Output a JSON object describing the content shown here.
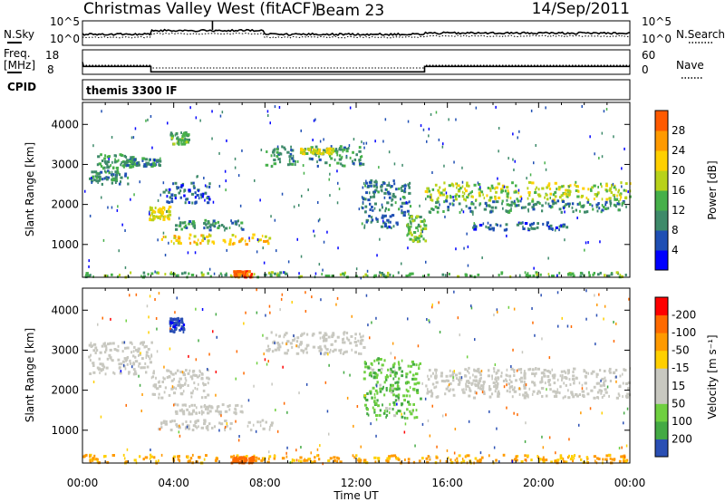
{
  "header": {
    "station": "Christmas Valley West (fitACF)",
    "beam": "Beam 23",
    "date": "14/Sep/2011"
  },
  "summary": {
    "nsky_label": "N.Sky",
    "nsky_ticks": [
      "10^5",
      "10^0"
    ],
    "nsearch_label": "N.Search",
    "nsearch_ticks": [
      "10^5",
      "10^0"
    ],
    "freq_label": [
      "Freq.",
      "[MHz]"
    ],
    "freq_ticks": [
      "18",
      "8"
    ],
    "nave_label": "Nave",
    "nave_ticks": [
      "60",
      "0"
    ],
    "cpid_label": "CPID",
    "cpid_value": "themis 3300 IF"
  },
  "colors": {
    "power": [
      "#0000ff",
      "#1f4fb4",
      "#3e8a6a",
      "#46b04a",
      "#b8d21a",
      "#ffd000",
      "#ff9a00",
      "#ff5a00",
      "#ff1a00"
    ],
    "velocity": [
      "#ff0000",
      "#ff6a00",
      "#ff9a00",
      "#ffd000",
      "#c8c8c0",
      "#c8c8c0",
      "#6fd040",
      "#44aa44",
      "#2a4fb4",
      "#0000ff"
    ]
  },
  "chart_data": [
    {
      "type": "heatmap",
      "name": "power",
      "ylabel": "Slant Range [km]",
      "yticks": [
        1000,
        2000,
        3000,
        4000
      ],
      "ylim": [
        180,
        4550
      ],
      "xlim": [
        0,
        24
      ],
      "colorbar": {
        "label": "Power [dB]",
        "ticks": [
          "4",
          "8",
          "12",
          "16",
          "20",
          "24",
          "28"
        ],
        "range": [
          0,
          32
        ]
      },
      "features": [
        {
          "desc": "band",
          "t": [
            0.2,
            2.0
          ],
          "r": [
            2500,
            2850
          ],
          "level": 10
        },
        {
          "desc": "band",
          "t": [
            0.6,
            2.2
          ],
          "r": [
            2900,
            3250
          ],
          "level": 12
        },
        {
          "desc": "band",
          "t": [
            1.8,
            3.4
          ],
          "r": [
            2950,
            3150
          ],
          "level": 9
        },
        {
          "desc": "band",
          "t": [
            2.9,
            3.8
          ],
          "r": [
            1600,
            1950
          ],
          "level": 20
        },
        {
          "desc": "band",
          "t": [
            3.5,
            5.6
          ],
          "r": [
            2000,
            2550
          ],
          "level": 7
        },
        {
          "desc": "band",
          "t": [
            3.8,
            4.6
          ],
          "r": [
            3500,
            3800
          ],
          "level": 13
        },
        {
          "desc": "band",
          "t": [
            3.3,
            8.3
          ],
          "r": [
            1000,
            1250
          ],
          "level": 22
        },
        {
          "desc": "band",
          "t": [
            4.0,
            7.0
          ],
          "r": [
            1350,
            1600
          ],
          "level": 11
        },
        {
          "desc": "band",
          "t": [
            8.0,
            12.3
          ],
          "r": [
            2950,
            3450
          ],
          "level": 11
        },
        {
          "desc": "band",
          "t": [
            9.5,
            11.0
          ],
          "r": [
            3250,
            3400
          ],
          "level": 20
        },
        {
          "desc": "band",
          "t": [
            12.2,
            14.4
          ],
          "r": [
            1400,
            2600
          ],
          "level": 9
        },
        {
          "desc": "band",
          "t": [
            14.2,
            15.0
          ],
          "r": [
            1050,
            1700
          ],
          "level": 15
        },
        {
          "desc": "band",
          "t": [
            15.0,
            24.0
          ],
          "r": [
            2100,
            2550
          ],
          "level": 18
        },
        {
          "desc": "band",
          "t": [
            15.0,
            24.0
          ],
          "r": [
            1800,
            2100
          ],
          "level": 10
        },
        {
          "desc": "band",
          "t": [
            17.0,
            21.5
          ],
          "r": [
            1350,
            1550
          ],
          "level": 7
        },
        {
          "desc": "near-range",
          "t": [
            0.0,
            24.0
          ],
          "r": [
            180,
            300
          ],
          "level": 14
        },
        {
          "desc": "near-range",
          "t": [
            6.6,
            7.4
          ],
          "r": [
            180,
            330
          ],
          "level": 30
        }
      ]
    },
    {
      "type": "heatmap",
      "name": "velocity",
      "xlabel": "Time UT",
      "xticks": [
        "00:00",
        "04:00",
        "08:00",
        "12:00",
        "16:00",
        "20:00",
        "00:00"
      ],
      "ylabel": "Slant Range [km]",
      "yticks": [
        1000,
        2000,
        3000,
        4000
      ],
      "ylim": [
        180,
        4550
      ],
      "xlim": [
        0,
        24
      ],
      "colorbar": {
        "label": "Velocity [m s^-1]",
        "ticks": [
          "-200",
          "-100",
          "-50",
          "-15",
          "15",
          "50",
          "100",
          "200"
        ],
        "range": [
          -250,
          250
        ]
      },
      "features": [
        {
          "desc": "ground scatter",
          "t": [
            0.2,
            3.0
          ],
          "r": [
            2400,
            3200
          ],
          "velocity": 0
        },
        {
          "desc": "ground scatter",
          "t": [
            3.0,
            5.5
          ],
          "r": [
            1800,
            2500
          ],
          "velocity": 0
        },
        {
          "desc": "ground scatter",
          "t": [
            3.3,
            8.3
          ],
          "r": [
            1000,
            1250
          ],
          "velocity": 0
        },
        {
          "desc": "ground scatter",
          "t": [
            4.0,
            7.0
          ],
          "r": [
            1400,
            1650
          ],
          "velocity": 0
        },
        {
          "desc": "ground scatter",
          "t": [
            8.0,
            12.3
          ],
          "r": [
            2900,
            3450
          ],
          "velocity": -5
        },
        {
          "desc": "ionospheric",
          "t": [
            12.3,
            14.8
          ],
          "r": [
            1300,
            2800
          ],
          "velocity": 40
        },
        {
          "desc": "ionospheric",
          "t": [
            3.8,
            4.4
          ],
          "r": [
            3450,
            3800
          ],
          "velocity": 180
        },
        {
          "desc": "ground scatter",
          "t": [
            15.0,
            24.0
          ],
          "r": [
            1800,
            2550
          ],
          "velocity": 0
        },
        {
          "desc": "near-range",
          "t": [
            0.0,
            24.0
          ],
          "r": [
            180,
            380
          ],
          "velocity": -60
        },
        {
          "desc": "near-range",
          "t": [
            6.5,
            7.5
          ],
          "r": [
            180,
            330
          ],
          "velocity": -160
        }
      ]
    }
  ]
}
